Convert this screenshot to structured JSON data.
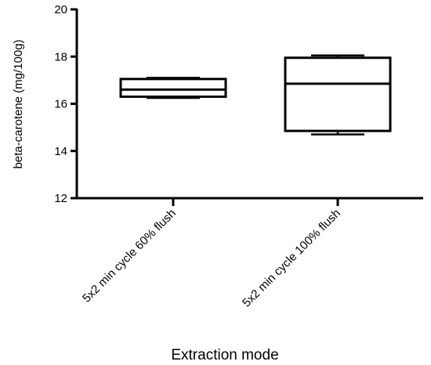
{
  "chart_data": {
    "type": "box",
    "title": "",
    "xlabel": "Extraction mode",
    "ylabel": "beta-carotene (mg/100g)",
    "ylim": [
      12,
      20
    ],
    "yticks": [
      12,
      14,
      16,
      18,
      20
    ],
    "grid": false,
    "categories": [
      "5x2 min cycle 60% flush",
      "5x2 min cycle 100% flush"
    ],
    "boxes": [
      {
        "min": 16.25,
        "q1": 16.3,
        "median": 16.6,
        "q3": 17.05,
        "max": 17.1
      },
      {
        "min": 14.7,
        "q1": 14.85,
        "median": 16.85,
        "q3": 17.95,
        "max": 18.05
      }
    ],
    "colors": {
      "stroke": "#000000",
      "fill": "#ffffff",
      "background": "#ffffff"
    }
  }
}
